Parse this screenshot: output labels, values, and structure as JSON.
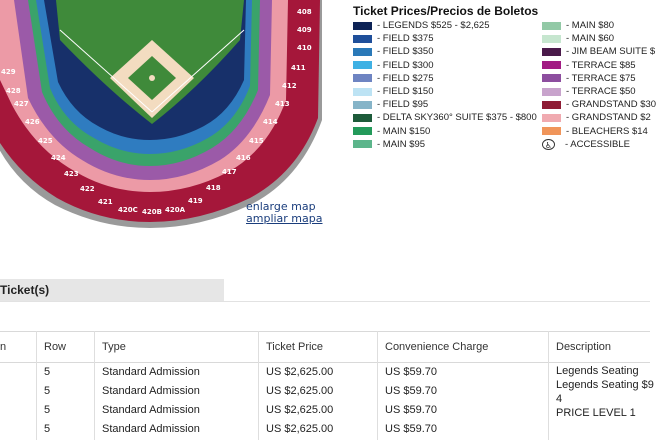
{
  "map": {
    "field_color": "#3f8a3a",
    "infield_color": "#f3dcc0",
    "sections": [
      {
        "id": "sec-408",
        "label": "408"
      },
      {
        "id": "sec-409",
        "label": "409"
      },
      {
        "id": "sec-410",
        "label": "410"
      },
      {
        "id": "sec-411",
        "label": "411"
      },
      {
        "id": "sec-412",
        "label": "412"
      },
      {
        "id": "sec-413",
        "label": "413"
      },
      {
        "id": "sec-414",
        "label": "414"
      },
      {
        "id": "sec-415",
        "label": "415"
      },
      {
        "id": "sec-416",
        "label": "416"
      },
      {
        "id": "sec-417",
        "label": "417"
      },
      {
        "id": "sec-418",
        "label": "418"
      },
      {
        "id": "sec-419",
        "label": "419"
      },
      {
        "id": "sec-420a",
        "label": "420A"
      },
      {
        "id": "sec-420b",
        "label": "420B"
      },
      {
        "id": "sec-420c",
        "label": "420C"
      },
      {
        "id": "sec-421",
        "label": "421"
      },
      {
        "id": "sec-422",
        "label": "422"
      },
      {
        "id": "sec-423",
        "label": "423"
      },
      {
        "id": "sec-424",
        "label": "424"
      },
      {
        "id": "sec-425",
        "label": "425"
      },
      {
        "id": "sec-426",
        "label": "426"
      },
      {
        "id": "sec-427",
        "label": "427"
      },
      {
        "id": "sec-428",
        "label": "428"
      },
      {
        "id": "sec-429",
        "label": "429"
      }
    ],
    "enlarge_label": "enlarge map",
    "ampliar_label": "ampliar mapa"
  },
  "legend": {
    "title": "Ticket Prices/Precios de Boletos",
    "left": [
      {
        "label": "- LEGENDS $525 - $2,625",
        "color": "#0d2356"
      },
      {
        "label": "- FIELD $375",
        "color": "#1f4f9a"
      },
      {
        "label": "- FIELD $350",
        "color": "#2a79b8"
      },
      {
        "label": "- FIELD $300",
        "color": "#3fb1e4"
      },
      {
        "label": "- FIELD $275",
        "color": "#6e84c2"
      },
      {
        "label": "- FIELD $150",
        "color": "#bde3f4"
      },
      {
        "label": "- FIELD $95",
        "color": "#86b4c8"
      },
      {
        "label": "- DELTA SKY360° SUITE $375 - $800",
        "color": "#1d5b3a"
      },
      {
        "label": "- MAIN $150",
        "color": "#239a5a"
      },
      {
        "label": "- MAIN $95",
        "color": "#5cb58b"
      }
    ],
    "right": [
      {
        "label": "- MAIN $80",
        "color": "#92c9a6"
      },
      {
        "label": "- MAIN $60",
        "color": "#c6e6cf"
      },
      {
        "label": "- JIM BEAM SUITE $",
        "color": "#4a1a4a"
      },
      {
        "label": "- TERRACE $85",
        "color": "#a21b83"
      },
      {
        "label": "- TERRACE $75",
        "color": "#8d4e9f"
      },
      {
        "label": "- TERRACE $50",
        "color": "#c8a3cc"
      },
      {
        "label": "- GRANDSTAND $30",
        "color": "#8e1c35"
      },
      {
        "label": "- GRANDSTAND $2",
        "color": "#f0aab0"
      },
      {
        "label": "- BLEACHERS $14",
        "color": "#f0955a"
      },
      {
        "label": "- ACCESSIBLE",
        "icon": "accessible-icon"
      }
    ]
  },
  "tickets": {
    "header": "Ticket(s)",
    "columns": {
      "first": "n",
      "row": "Row",
      "type": "Type",
      "price": "Ticket Price",
      "fee": "Convenience Charge",
      "desc": "Description"
    },
    "rows": [
      {
        "row": "5",
        "type": "Standard Admission",
        "price": "US $2,625.00",
        "fee": "US $59.70"
      },
      {
        "row": "5",
        "type": "Standard Admission",
        "price": "US $2,625.00",
        "fee": "US $59.70"
      },
      {
        "row": "5",
        "type": "Standard Admission",
        "price": "US $2,625.00",
        "fee": "US $59.70"
      },
      {
        "row": "5",
        "type": "Standard Admission",
        "price": "US $2,625.00",
        "fee": "US $59.70"
      }
    ],
    "description": {
      "line1": "Legends Seating",
      "line2": "Legends Seating $9",
      "line3": "4",
      "line4": "PRICE LEVEL 1"
    }
  }
}
